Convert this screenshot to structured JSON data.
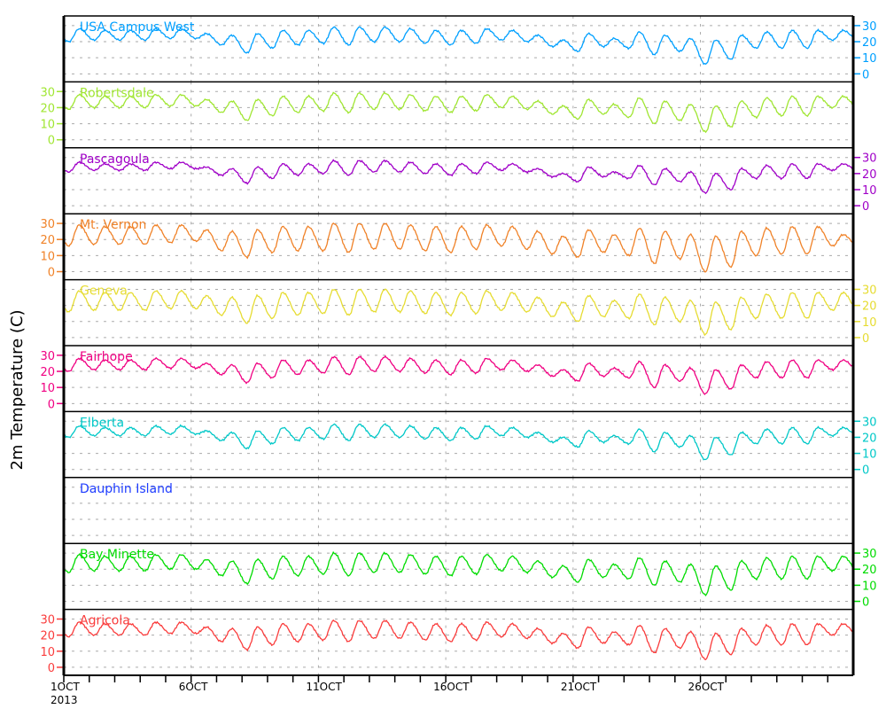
{
  "chart_data": {
    "type": "line",
    "ylabel": "2m Temperature (C)",
    "x_start_label": "1OCT",
    "x_year_label": "2013",
    "x_tick_labels": [
      "1OCT",
      "6OCT",
      "11OCT",
      "16OCT",
      "21OCT",
      "26OCT"
    ],
    "x_tick_days": [
      1,
      6,
      11,
      16,
      21,
      26
    ],
    "xlim_days": [
      1,
      32
    ],
    "ylim": [
      -5,
      36
    ],
    "yticks": [
      0,
      10,
      20,
      30
    ],
    "grid": true,
    "series": [
      {
        "name": "USA Campus West",
        "color": "#00a0ff",
        "axis_side": "right",
        "daily_max": [
          28,
          27,
          27,
          28,
          28,
          25,
          24,
          25,
          27,
          27,
          29,
          29,
          29,
          28,
          27,
          27,
          28,
          27,
          24,
          21,
          25,
          22,
          26,
          24,
          22,
          21,
          24,
          26,
          27,
          27,
          27
        ],
        "daily_min": [
          20,
          21,
          21,
          21,
          22,
          22,
          18,
          13,
          16,
          18,
          19,
          18,
          20,
          20,
          19,
          18,
          19,
          21,
          20,
          17,
          14,
          17,
          16,
          12,
          14,
          6,
          9,
          16,
          16,
          16,
          21
        ]
      },
      {
        "name": "Robertsdale",
        "color": "#a0e632",
        "axis_side": "left",
        "daily_max": [
          28,
          27,
          27,
          28,
          28,
          25,
          24,
          25,
          27,
          27,
          29,
          29,
          29,
          28,
          27,
          27,
          28,
          27,
          24,
          21,
          25,
          22,
          26,
          24,
          22,
          21,
          24,
          26,
          27,
          27,
          27
        ],
        "daily_min": [
          19,
          20,
          20,
          20,
          21,
          21,
          17,
          12,
          15,
          17,
          18,
          17,
          19,
          19,
          18,
          17,
          18,
          20,
          19,
          16,
          13,
          16,
          14,
          10,
          12,
          5,
          8,
          14,
          15,
          15,
          20
        ]
      },
      {
        "name": "Pascagoula",
        "color": "#a000c8",
        "axis_side": "right",
        "daily_max": [
          27,
          26,
          26,
          27,
          27,
          24,
          23,
          24,
          26,
          26,
          28,
          28,
          28,
          27,
          26,
          26,
          27,
          26,
          23,
          20,
          24,
          21,
          25,
          23,
          21,
          20,
          23,
          25,
          26,
          26,
          26
        ],
        "daily_min": [
          21,
          22,
          22,
          22,
          23,
          23,
          19,
          14,
          17,
          19,
          20,
          19,
          21,
          21,
          20,
          19,
          20,
          22,
          21,
          18,
          15,
          18,
          17,
          13,
          15,
          8,
          10,
          17,
          17,
          17,
          22
        ]
      },
      {
        "name": "Mt. Vernon",
        "color": "#f08228",
        "axis_side": "left",
        "daily_max": [
          29,
          28,
          28,
          29,
          29,
          26,
          25,
          26,
          28,
          28,
          30,
          30,
          30,
          29,
          28,
          28,
          29,
          28,
          25,
          22,
          26,
          23,
          27,
          25,
          23,
          22,
          25,
          27,
          28,
          28,
          23
        ],
        "daily_min": [
          16,
          17,
          17,
          17,
          18,
          19,
          13,
          9,
          12,
          13,
          13,
          12,
          14,
          14,
          13,
          12,
          14,
          16,
          14,
          11,
          9,
          12,
          10,
          5,
          8,
          0,
          3,
          10,
          11,
          11,
          16
        ]
      },
      {
        "name": "Geneva",
        "color": "#e6dc32",
        "axis_side": "right",
        "daily_max": [
          29,
          28,
          28,
          29,
          29,
          26,
          25,
          26,
          28,
          28,
          30,
          30,
          30,
          29,
          28,
          28,
          29,
          28,
          25,
          22,
          26,
          23,
          27,
          25,
          23,
          22,
          25,
          27,
          28,
          28,
          28
        ],
        "daily_min": [
          16,
          17,
          17,
          17,
          18,
          18,
          14,
          9,
          12,
          14,
          15,
          14,
          16,
          16,
          15,
          14,
          15,
          17,
          16,
          13,
          10,
          13,
          12,
          8,
          10,
          2,
          5,
          12,
          12,
          12,
          17
        ]
      },
      {
        "name": "Fairhope",
        "color": "#f00082",
        "axis_side": "left",
        "daily_max": [
          28,
          27,
          27,
          28,
          28,
          25,
          24,
          25,
          27,
          27,
          29,
          29,
          29,
          28,
          27,
          27,
          28,
          27,
          24,
          21,
          25,
          22,
          26,
          24,
          22,
          21,
          24,
          26,
          27,
          27,
          27
        ],
        "daily_min": [
          20,
          21,
          21,
          21,
          22,
          22,
          18,
          13,
          16,
          18,
          19,
          18,
          20,
          20,
          19,
          18,
          19,
          21,
          20,
          17,
          14,
          17,
          16,
          10,
          14,
          6,
          9,
          16,
          16,
          16,
          21
        ]
      },
      {
        "name": "Elberta",
        "color": "#00c8c8",
        "axis_side": "right",
        "daily_max": [
          27,
          26,
          26,
          27,
          27,
          24,
          23,
          24,
          26,
          26,
          28,
          28,
          28,
          27,
          26,
          26,
          27,
          26,
          23,
          20,
          24,
          21,
          25,
          23,
          21,
          20,
          23,
          25,
          26,
          26,
          26
        ],
        "daily_min": [
          20,
          21,
          21,
          21,
          22,
          22,
          18,
          13,
          16,
          18,
          19,
          18,
          20,
          20,
          19,
          18,
          19,
          21,
          20,
          17,
          14,
          17,
          16,
          11,
          14,
          6,
          9,
          16,
          16,
          16,
          21
        ]
      },
      {
        "name": "Dauphin Island",
        "color": "#1e3cff",
        "axis_side": "none",
        "daily_max": [],
        "daily_min": []
      },
      {
        "name": "Bay Minette",
        "color": "#00dc00",
        "axis_side": "right",
        "daily_max": [
          29,
          28,
          28,
          29,
          29,
          26,
          25,
          26,
          28,
          28,
          30,
          30,
          30,
          29,
          28,
          28,
          29,
          28,
          25,
          22,
          26,
          23,
          27,
          25,
          23,
          22,
          25,
          27,
          28,
          28,
          28
        ],
        "daily_min": [
          18,
          19,
          19,
          19,
          20,
          20,
          16,
          11,
          14,
          16,
          17,
          16,
          18,
          18,
          17,
          16,
          17,
          19,
          18,
          15,
          12,
          15,
          14,
          10,
          12,
          4,
          7,
          14,
          14,
          14,
          19
        ]
      },
      {
        "name": "Agricola",
        "color": "#fa3c3c",
        "axis_side": "left",
        "daily_max": [
          28,
          27,
          27,
          28,
          28,
          25,
          24,
          25,
          27,
          27,
          29,
          29,
          29,
          28,
          27,
          27,
          28,
          27,
          24,
          21,
          25,
          22,
          26,
          24,
          22,
          21,
          24,
          26,
          27,
          27,
          27
        ],
        "daily_min": [
          19,
          20,
          20,
          20,
          21,
          21,
          16,
          11,
          14,
          16,
          17,
          16,
          18,
          18,
          17,
          16,
          17,
          19,
          18,
          15,
          12,
          15,
          14,
          9,
          12,
          5,
          8,
          14,
          14,
          14,
          20
        ]
      }
    ]
  }
}
